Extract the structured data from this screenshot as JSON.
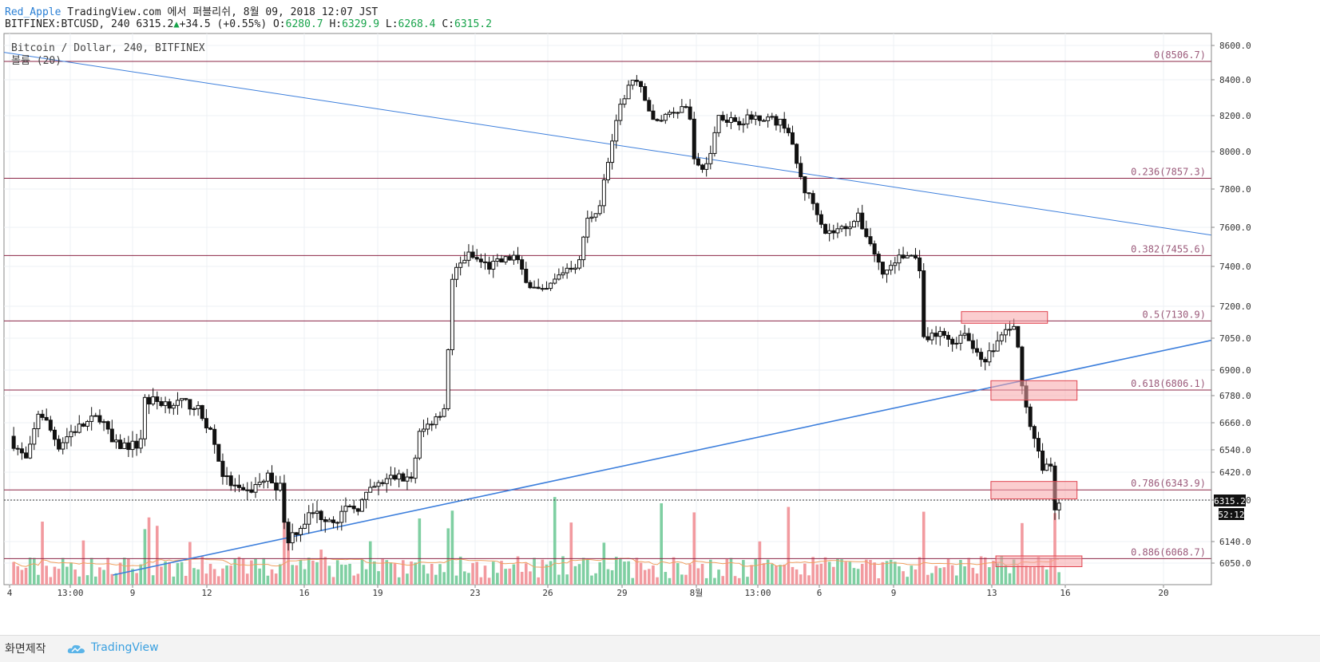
{
  "header": {
    "author": "Red_Apple",
    "published": "TradingView.com 에서 퍼블리쉬, 8월 09, 2018 12:07 JST",
    "symbol": "BITFINEX:BTCUSD, 240",
    "last": "6315.2",
    "up_arrow": "▲",
    "change": "+34.5 (+0.55%)",
    "o_label": "O:",
    "o_val": "6280.7",
    "h_label": "H:",
    "h_val": "6329.9",
    "l_label": "L:",
    "l_val": "6268.4",
    "c_label": "C:",
    "c_val": "6315.2"
  },
  "legend": {
    "title": "Bitcoin / Dollar, 240, BITFINEX",
    "volume": "볼륨 (20)"
  },
  "footer": {
    "made_with": "화면제작",
    "brand": "TradingView"
  },
  "colors": {
    "up_volume": "#7fcfa2",
    "down_volume": "#f29a9f",
    "fib_line": "#8b2546",
    "fib_label": "#9b5a7a",
    "trend_line": "#3d7fdc",
    "zone_fill": "#f7a4a8",
    "zone_stroke": "#e04550",
    "vol_ma": "#f0a060"
  },
  "chart_data": {
    "type": "candlestick",
    "title": "Bitcoin / Dollar, 240, BITFINEX",
    "y_ticks": [
      "8600.0",
      "8400.0",
      "8200.0",
      "8000.0",
      "7800.0",
      "7600.0",
      "7400.0",
      "7200.0",
      "7050.0",
      "6900.0",
      "6780.0",
      "6660.0",
      "6540.0",
      "6420.0",
      "6300.0",
      "6140.0",
      "6050.0"
    ],
    "x_ticks": [
      "4",
      "13:00",
      "9",
      "12",
      "16",
      "19",
      "23",
      "26",
      "29",
      "8월",
      "13:00",
      "6",
      "9",
      "13",
      "16",
      "20"
    ],
    "fib_levels": [
      {
        "label": "0(8506.7)",
        "value": 8506.7
      },
      {
        "label": "0.236(7857.3)",
        "value": 7857.3
      },
      {
        "label": "0.382(7455.6)",
        "value": 7455.6
      },
      {
        "label": "0.5(7130.9)",
        "value": 7130.9
      },
      {
        "label": "0.618(6806.1)",
        "value": 6806.1
      },
      {
        "label": "0.786(6343.9)",
        "value": 6343.9
      },
      {
        "label": "0.886(6068.7)",
        "value": 6068.7
      }
    ],
    "last_price": "6315.2",
    "countdown": "52:12",
    "close_path": [
      [
        0,
        6600
      ],
      [
        0.7,
        6480
      ],
      [
        1.2,
        6720
      ],
      [
        2,
        6560
      ],
      [
        2.5,
        6620
      ],
      [
        3.7,
        6690
      ],
      [
        4.2,
        6560
      ],
      [
        5.3,
        6560
      ],
      [
        5.5,
        6760
      ],
      [
        6.3,
        6750
      ],
      [
        7.5,
        6740
      ],
      [
        8.2,
        6620
      ],
      [
        8.7,
        6400
      ],
      [
        9.5,
        6320
      ],
      [
        10.5,
        6400
      ],
      [
        11,
        6350
      ],
      [
        11.3,
        6150
      ],
      [
        12.3,
        6250
      ],
      [
        13.2,
        6230
      ],
      [
        14.2,
        6280
      ],
      [
        14.8,
        6350
      ],
      [
        15.6,
        6400
      ],
      [
        16.4,
        6390
      ],
      [
        16.6,
        6600
      ],
      [
        17.4,
        6700
      ],
      [
        17.7,
        6730
      ],
      [
        18,
        7350
      ],
      [
        18.6,
        7460
      ],
      [
        19.5,
        7400
      ],
      [
        20.5,
        7450
      ],
      [
        21.2,
        7300
      ],
      [
        21.7,
        7260
      ],
      [
        22.6,
        7390
      ],
      [
        23.2,
        7420
      ],
      [
        23.4,
        7620
      ],
      [
        24.0,
        7720
      ],
      [
        24.4,
        8000
      ],
      [
        24.9,
        8280
      ],
      [
        25.3,
        8400
      ],
      [
        25.8,
        8320
      ],
      [
        26.2,
        8150
      ],
      [
        26.8,
        8220
      ],
      [
        27.6,
        8260
      ],
      [
        27.9,
        7900
      ],
      [
        28.4,
        7930
      ],
      [
        28.8,
        8200
      ],
      [
        29.6,
        8170
      ],
      [
        30.6,
        8200
      ],
      [
        31.3,
        8160
      ],
      [
        31.6,
        8150
      ],
      [
        31.9,
        7980
      ],
      [
        32.3,
        7800
      ],
      [
        32.8,
        7700
      ],
      [
        33.2,
        7570
      ],
      [
        33.8,
        7590
      ],
      [
        34.5,
        7650
      ],
      [
        35.0,
        7520
      ],
      [
        35.5,
        7360
      ],
      [
        36.1,
        7440
      ],
      [
        36.7,
        7460
      ],
      [
        37.0,
        7400
      ],
      [
        37.1,
        7030
      ],
      [
        37.9,
        7070
      ],
      [
        38.5,
        7030
      ],
      [
        38.8,
        7100
      ],
      [
        39.1,
        7010
      ],
      [
        39.7,
        6950
      ],
      [
        40.2,
        7040
      ],
      [
        40.6,
        7100
      ],
      [
        40.9,
        7090
      ],
      [
        41.2,
        6820
      ],
      [
        41.6,
        6600
      ],
      [
        42.0,
        6450
      ],
      [
        42.3,
        6470
      ],
      [
        42.5,
        6280
      ],
      [
        42.8,
        6315
      ]
    ]
  }
}
